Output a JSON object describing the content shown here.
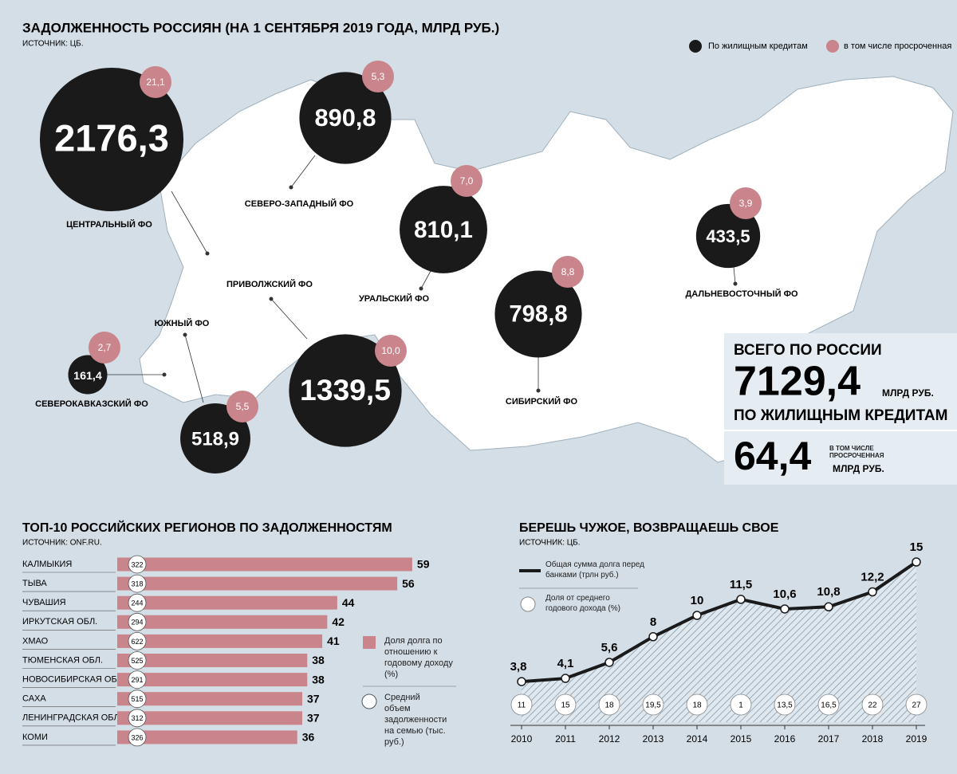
{
  "map": {
    "title": "ЗАДОЛЖЕННОСТЬ РОССИЯН (НА 1 СЕНТЯБРЯ 2019 ГОДА, МЛРД РУБ.)",
    "source": "ИСТОЧНИК: ЦБ.",
    "legend": [
      "По жилищным кредитам",
      "в том числе просроченная"
    ],
    "regions": [
      {
        "name": "ЦЕНТРАЛЬНЫЙ ФО",
        "value": 2176.3,
        "value_label": "2176,3",
        "overdue": 21.1,
        "overdue_label": "21,1"
      },
      {
        "name": "СЕВЕРО-ЗАПАДНЫЙ  ФО",
        "value": 890.8,
        "value_label": "890,8",
        "overdue": 5.3,
        "overdue_label": "5,3"
      },
      {
        "name": "УРАЛЬСКИЙ ФО",
        "value": 810.1,
        "value_label": "810,1",
        "overdue": 7.0,
        "overdue_label": "7,0"
      },
      {
        "name": "СИБИРСКИЙ ФО",
        "value": 798.8,
        "value_label": "798,8",
        "overdue": 8.8,
        "overdue_label": "8,8"
      },
      {
        "name": "ДАЛЬНЕВОСТОЧНЫЙ ФО",
        "value": 433.5,
        "value_label": "433,5",
        "overdue": 3.9,
        "overdue_label": "3,9"
      },
      {
        "name": "ПРИВОЛЖСКИЙ ФО",
        "value": 1339.5,
        "value_label": "1339,5",
        "overdue": 10.0,
        "overdue_label": "10,0"
      },
      {
        "name": "ЮЖНЫЙ ФО",
        "value": 518.9,
        "value_label": "518,9",
        "overdue": 5.5,
        "overdue_label": "5,5"
      },
      {
        "name": "СЕВЕРОКАВКАЗСКИЙ ФО",
        "value": 161.4,
        "value_label": "161,4",
        "overdue": 2.7,
        "overdue_label": "2,7"
      }
    ],
    "total": {
      "heading": "ВСЕГО ПО РОССИИ",
      "value_label": "7129,4",
      "unit": "МЛРД РУБ.",
      "subheading": "ПО ЖИЛИЩНЫМ КРЕДИТАМ",
      "overdue_label": "64,4",
      "overdue_note": "В ТОМ ЧИСЛЕ ПРОСРОЧЕННАЯ",
      "overdue_unit": "МЛРД РУБ."
    }
  },
  "chart_data": [
    {
      "type": "hbar",
      "title": "ТОП-10 РОССИЙСКИХ РЕГИОНОВ ПО ЗАДОЛЖЕННОСТЯМ",
      "source": "ИСТОЧНИК: ONF.RU.",
      "categories": [
        "КАЛМЫКИЯ",
        "ТЫВА",
        "ЧУВАШИЯ",
        "ИРКУТСКАЯ ОБЛ.",
        "ХМАО",
        "ТЮМЕНСКАЯ ОБЛ.",
        "НОВОСИБИРСКАЯ ОБЛ.",
        "САХА",
        "ЛЕНИНГРАДСКАЯ ОБЛ.",
        "КОМИ"
      ],
      "series": [
        {
          "name": "Доля долга по отношению к годовому доходу (%)",
          "color": "#c9858b",
          "values": [
            59,
            56,
            44,
            42,
            41,
            38,
            38,
            37,
            37,
            36
          ]
        },
        {
          "name": "Средний объем задолженности на семью (тыс. руб.)",
          "color": "#ffffff",
          "values": [
            322,
            318,
            244,
            294,
            622,
            525,
            291,
            515,
            312,
            326
          ]
        }
      ]
    },
    {
      "type": "line",
      "title": "БЕРЕШЬ ЧУЖОЕ, ВОЗВРАЩАЕШЬ СВОЕ",
      "source": "ИСТОЧНИК: ЦБ.",
      "x": [
        2010,
        2011,
        2012,
        2013,
        2014,
        2015,
        2016,
        2017,
        2018,
        2019
      ],
      "series": [
        {
          "name": "Общая сумма долга перед банками (трлн руб.)",
          "color": "#1a1a1a",
          "values": [
            3.8,
            4.1,
            5.6,
            8,
            10,
            11.5,
            10.6,
            10.8,
            12.2,
            15
          ],
          "value_labels": [
            "3,8",
            "4,1",
            "5,6",
            "8",
            "10",
            "11,5",
            "10,6",
            "10,8",
            "12,2",
            "15"
          ]
        },
        {
          "name": "Доля от среднего годового дохода (%)",
          "color": "#ffffff",
          "values": [
            11,
            15,
            18,
            19.5,
            18,
            1,
            13.5,
            16.5,
            22,
            27
          ],
          "value_labels": [
            "11",
            "15",
            "18",
            "19,5",
            "18",
            "1",
            "13,5",
            "16,5",
            "22",
            "27"
          ]
        }
      ]
    }
  ]
}
